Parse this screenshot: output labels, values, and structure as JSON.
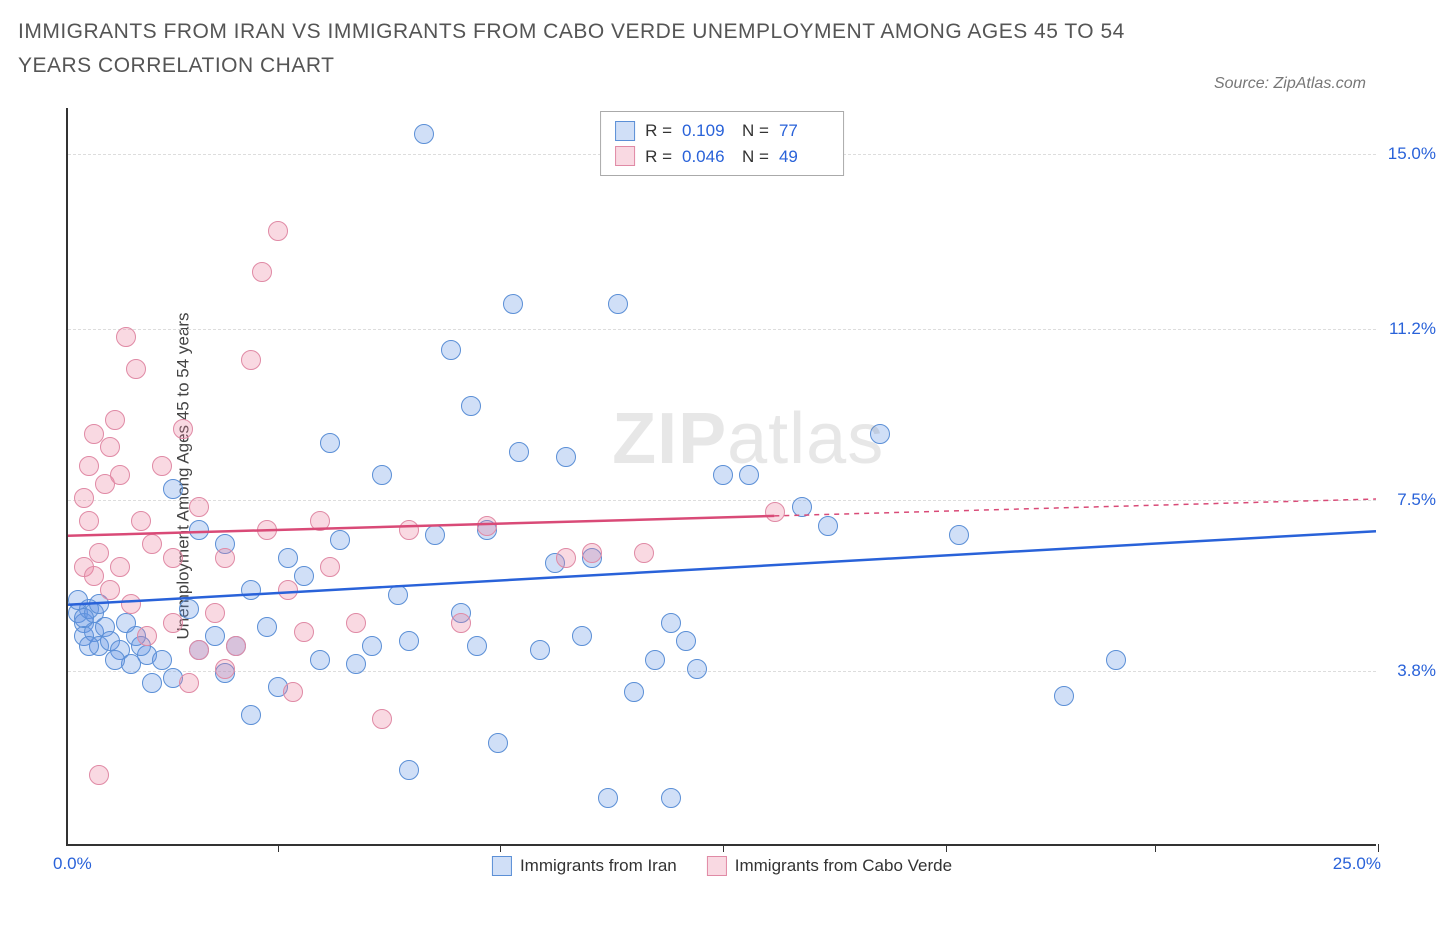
{
  "title": "IMMIGRANTS FROM IRAN VS IMMIGRANTS FROM CABO VERDE UNEMPLOYMENT AMONG AGES 45 TO 54 YEARS CORRELATION CHART",
  "source": "Source: ZipAtlas.com",
  "watermark_bold": "ZIP",
  "watermark_light": "atlas",
  "chart": {
    "type": "scatter",
    "ylabel": "Unemployment Among Ages 45 to 54 years",
    "xlim": [
      0,
      25
    ],
    "ylim": [
      0,
      16
    ],
    "x_axis": {
      "min_label": "0.0%",
      "max_label": "25.0%",
      "tick_positions_pct": [
        16,
        33,
        50,
        67,
        83,
        100
      ]
    },
    "y_gridlines": [
      {
        "value": 3.8,
        "label": "3.8%"
      },
      {
        "value": 7.5,
        "label": "7.5%"
      },
      {
        "value": 11.2,
        "label": "11.2%"
      },
      {
        "value": 15.0,
        "label": "15.0%"
      }
    ],
    "background_color": "#ffffff",
    "grid_color": "#dddddd",
    "axis_color": "#333333",
    "label_color": "#2962d9",
    "marker_radius": 10,
    "marker_stroke_width": 1.5,
    "series": [
      {
        "name": "Immigrants from Iran",
        "fill_color": "rgba(100,150,230,0.30)",
        "stroke_color": "#5b8fd6",
        "line_color": "#2962d9",
        "line_width": 2.5,
        "R": "0.109",
        "N": "77",
        "trend": {
          "x1": 0,
          "y1": 5.2,
          "x2": 25,
          "y2": 6.8,
          "solid_until_x": 25
        },
        "points": [
          [
            0.2,
            5.0
          ],
          [
            0.3,
            4.8
          ],
          [
            0.3,
            4.5
          ],
          [
            0.5,
            4.6
          ],
          [
            0.4,
            5.1
          ],
          [
            0.2,
            5.3
          ],
          [
            0.6,
            4.3
          ],
          [
            0.7,
            4.7
          ],
          [
            0.8,
            4.4
          ],
          [
            0.5,
            5.0
          ],
          [
            1.0,
            4.2
          ],
          [
            1.2,
            3.9
          ],
          [
            1.3,
            4.5
          ],
          [
            1.5,
            4.1
          ],
          [
            1.6,
            3.5
          ],
          [
            1.8,
            4.0
          ],
          [
            2.0,
            3.6
          ],
          [
            2.0,
            7.7
          ],
          [
            2.3,
            5.1
          ],
          [
            2.5,
            4.2
          ],
          [
            2.5,
            6.8
          ],
          [
            2.8,
            4.5
          ],
          [
            3.0,
            3.7
          ],
          [
            3.0,
            6.5
          ],
          [
            3.2,
            4.3
          ],
          [
            3.5,
            5.5
          ],
          [
            3.5,
            2.8
          ],
          [
            3.8,
            4.7
          ],
          [
            4.0,
            3.4
          ],
          [
            4.2,
            6.2
          ],
          [
            4.5,
            5.8
          ],
          [
            4.8,
            4.0
          ],
          [
            5.0,
            8.7
          ],
          [
            5.2,
            6.6
          ],
          [
            5.5,
            3.9
          ],
          [
            5.8,
            4.3
          ],
          [
            6.0,
            8.0
          ],
          [
            6.3,
            5.4
          ],
          [
            6.5,
            4.4
          ],
          [
            6.5,
            1.6
          ],
          [
            6.8,
            15.4
          ],
          [
            7.0,
            6.7
          ],
          [
            7.3,
            10.7
          ],
          [
            7.5,
            5.0
          ],
          [
            7.7,
            9.5
          ],
          [
            7.8,
            4.3
          ],
          [
            8.0,
            6.8
          ],
          [
            8.2,
            2.2
          ],
          [
            8.5,
            11.7
          ],
          [
            8.6,
            8.5
          ],
          [
            9.0,
            4.2
          ],
          [
            9.3,
            6.1
          ],
          [
            9.5,
            8.4
          ],
          [
            9.8,
            4.5
          ],
          [
            10.0,
            6.2
          ],
          [
            10.3,
            1.0
          ],
          [
            10.5,
            11.7
          ],
          [
            10.8,
            3.3
          ],
          [
            11.2,
            4.0
          ],
          [
            11.5,
            4.8
          ],
          [
            11.5,
            1.0
          ],
          [
            11.8,
            4.4
          ],
          [
            12.0,
            3.8
          ],
          [
            12.5,
            8.0
          ],
          [
            13.0,
            8.0
          ],
          [
            14.0,
            7.3
          ],
          [
            14.5,
            6.9
          ],
          [
            15.5,
            8.9
          ],
          [
            17.0,
            6.7
          ],
          [
            19.0,
            3.2
          ],
          [
            20.0,
            4.0
          ],
          [
            0.4,
            4.3
          ],
          [
            0.6,
            5.2
          ],
          [
            0.9,
            4.0
          ],
          [
            1.1,
            4.8
          ],
          [
            1.4,
            4.3
          ],
          [
            0.3,
            4.9
          ]
        ]
      },
      {
        "name": "Immigrants from Cabo Verde",
        "fill_color": "rgba(235,130,160,0.30)",
        "stroke_color": "#e08aa5",
        "line_color": "#d94a77",
        "line_width": 2.5,
        "R": "0.046",
        "N": "49",
        "trend": {
          "x1": 0,
          "y1": 6.7,
          "x2": 25,
          "y2": 7.5,
          "solid_until_x": 13.5
        },
        "points": [
          [
            0.3,
            6.0
          ],
          [
            0.3,
            7.5
          ],
          [
            0.4,
            8.2
          ],
          [
            0.4,
            7.0
          ],
          [
            0.5,
            5.8
          ],
          [
            0.5,
            8.9
          ],
          [
            0.6,
            6.3
          ],
          [
            0.7,
            7.8
          ],
          [
            0.8,
            5.5
          ],
          [
            0.8,
            8.6
          ],
          [
            0.9,
            9.2
          ],
          [
            1.0,
            6.0
          ],
          [
            1.0,
            8.0
          ],
          [
            1.1,
            11.0
          ],
          [
            1.2,
            5.2
          ],
          [
            1.3,
            10.3
          ],
          [
            1.4,
            7.0
          ],
          [
            1.5,
            4.5
          ],
          [
            1.6,
            6.5
          ],
          [
            1.8,
            8.2
          ],
          [
            2.0,
            4.8
          ],
          [
            2.0,
            6.2
          ],
          [
            2.2,
            9.0
          ],
          [
            2.5,
            4.2
          ],
          [
            2.5,
            7.3
          ],
          [
            2.8,
            5.0
          ],
          [
            3.0,
            6.2
          ],
          [
            3.0,
            3.8
          ],
          [
            3.2,
            4.3
          ],
          [
            3.5,
            10.5
          ],
          [
            3.7,
            12.4
          ],
          [
            3.8,
            6.8
          ],
          [
            4.0,
            13.3
          ],
          [
            4.2,
            5.5
          ],
          [
            4.5,
            4.6
          ],
          [
            4.8,
            7.0
          ],
          [
            5.0,
            6.0
          ],
          [
            5.5,
            4.8
          ],
          [
            6.0,
            2.7
          ],
          [
            6.5,
            6.8
          ],
          [
            7.5,
            4.8
          ],
          [
            8.0,
            6.9
          ],
          [
            9.5,
            6.2
          ],
          [
            10.0,
            6.3
          ],
          [
            11.0,
            6.3
          ],
          [
            0.6,
            1.5
          ],
          [
            4.3,
            3.3
          ],
          [
            2.3,
            3.5
          ],
          [
            13.5,
            7.2
          ]
        ]
      }
    ],
    "legend_top_labels": {
      "R": "R =",
      "N": "N ="
    }
  }
}
